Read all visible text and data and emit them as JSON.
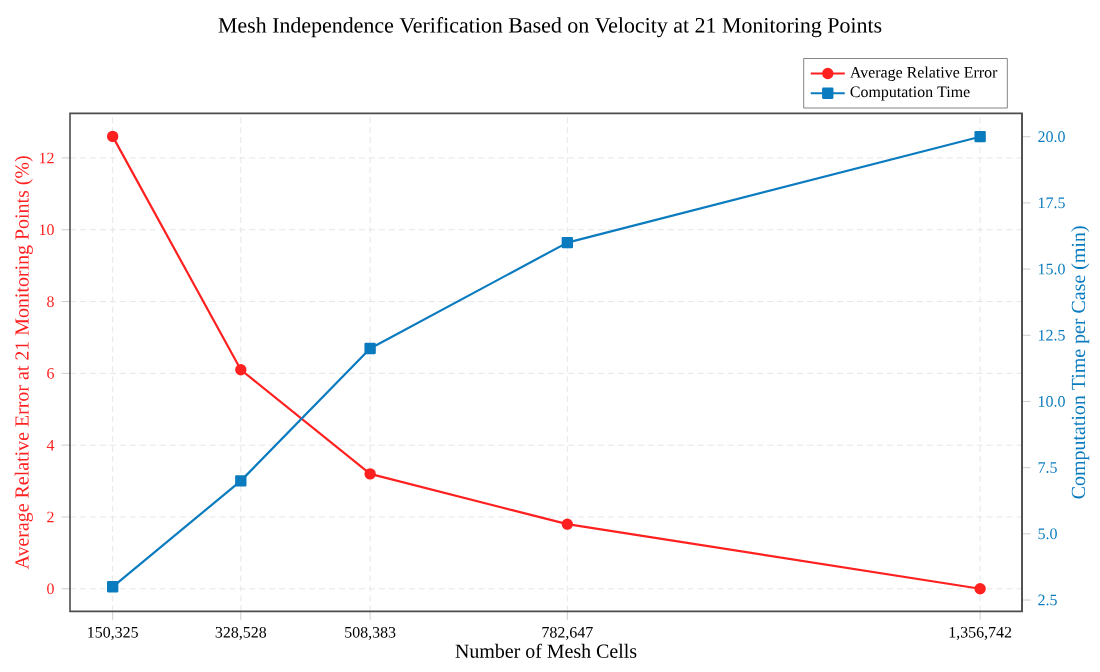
{
  "chart_data": {
    "type": "line",
    "title": "Mesh Independence Verification Based on Velocity at 21 Monitoring Points",
    "xlabel": "Number of Mesh Cells",
    "ylabel": "Average Relative Error at 21 Monitoring Points (%)",
    "y2label": "Computation Time per Case (min)",
    "x": [
      150325,
      328528,
      508383,
      782647,
      1356742
    ],
    "series": [
      {
        "name": "Average Relative Error",
        "color": "#ff2020",
        "values": [
          12.6,
          6.1,
          3.2,
          1.8,
          0.0
        ],
        "marker": "circle"
      },
      {
        "name": "Computation Time",
        "color": "#0a7bbf",
        "values": [
          3.0,
          7.0,
          12.0,
          16.0,
          20.0
        ],
        "marker": "square",
        "axis": "y2"
      }
    ],
    "xlim": [
      91000,
      1415000
    ],
    "xticks": [
      {
        "value": 150325,
        "label": "150,325"
      },
      {
        "value": 328528,
        "label": "328,528"
      },
      {
        "value": 508383,
        "label": "508,383"
      },
      {
        "value": 782647,
        "label": "782,647"
      },
      {
        "value": 1356742,
        "label": "1,356,742"
      }
    ],
    "ylim": [
      -0.63,
      13.24
    ],
    "yticks": [
      0,
      2,
      4,
      6,
      8,
      10,
      12
    ],
    "y2lim": [
      2.07,
      20.88
    ],
    "y2ticks": [
      2.5,
      {
        "value": 5,
        "label": "5.0"
      },
      7.5,
      {
        "value": 10,
        "label": "10.0"
      },
      12.5,
      {
        "value": 15,
        "label": "15.0"
      },
      17.5,
      {
        "value": 20,
        "label": "20.0"
      }
    ],
    "grid": true,
    "legend": "top right",
    "line_style": "solid"
  }
}
